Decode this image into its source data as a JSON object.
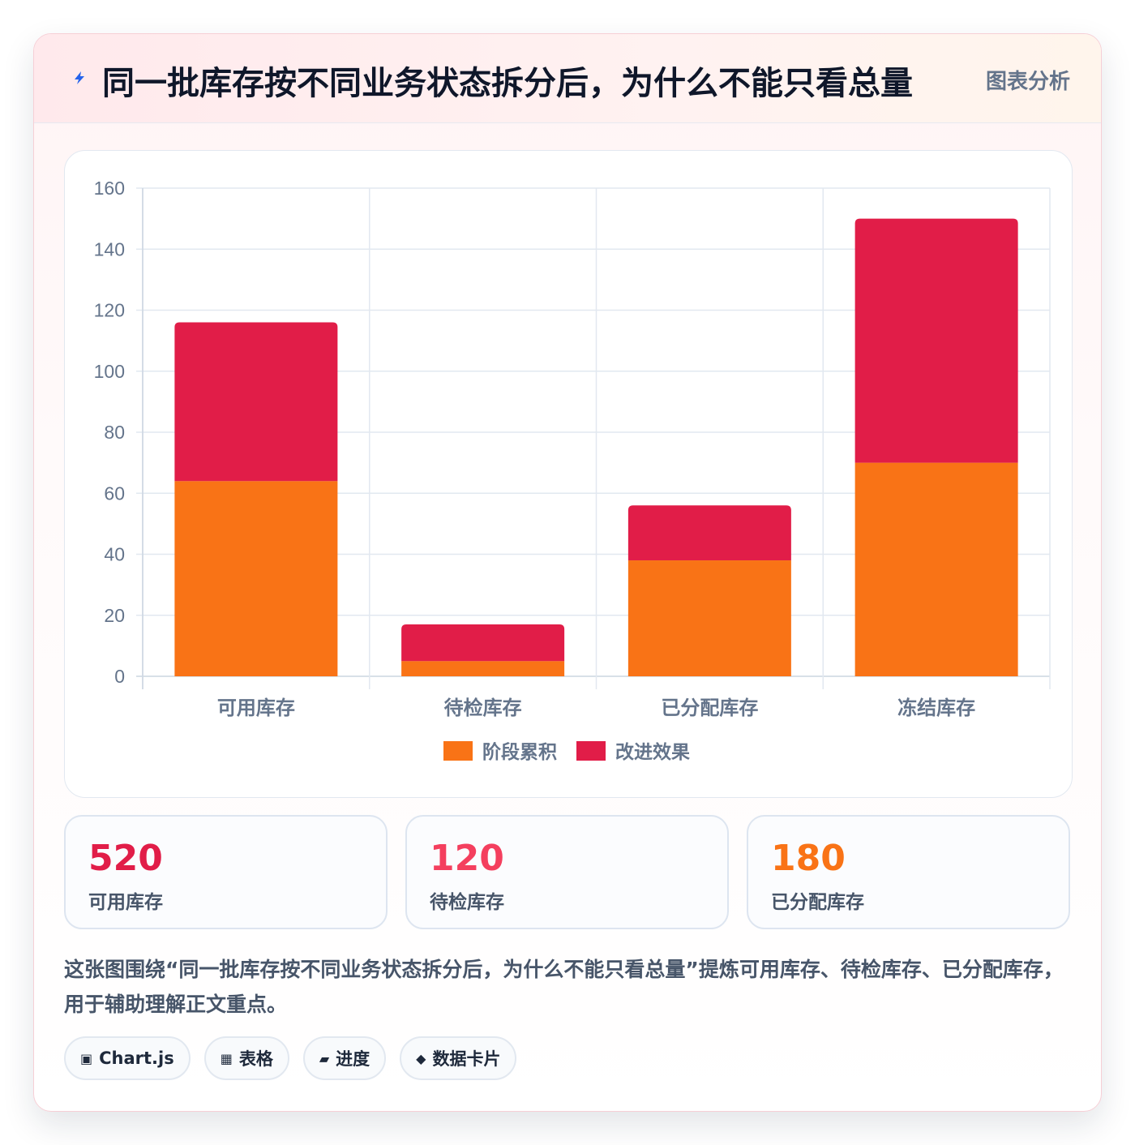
{
  "header": {
    "title": "同一批库存按不同业务状态拆分后，为什么不能只看总量",
    "tag": "图表分析",
    "icon": "lightning-icon"
  },
  "chart_data": {
    "type": "bar",
    "stacked": true,
    "categories": [
      "可用库存",
      "待检库存",
      "已分配库存",
      "冻结库存"
    ],
    "series": [
      {
        "name": "阶段累积",
        "values": [
          64,
          5,
          38,
          70
        ],
        "color": "#f97316"
      },
      {
        "name": "改进效果",
        "values": [
          52,
          12,
          18,
          80
        ],
        "color": "#e11d48"
      }
    ],
    "ylim": [
      0,
      160
    ],
    "yticks": [
      0,
      20,
      40,
      60,
      80,
      100,
      120,
      140,
      160
    ],
    "grid": true,
    "legend": "bottom"
  },
  "stats": [
    {
      "value": "520",
      "label": "可用库存",
      "color": "#e11d48"
    },
    {
      "value": "120",
      "label": "待检库存",
      "color": "#f43f5e"
    },
    {
      "value": "180",
      "label": "已分配库存",
      "color": "#f97316"
    }
  ],
  "description": "这张图围绕“同一批库存按不同业务状态拆分后，为什么不能只看总量”提炼可用库存、待检库存、已分配库存，用于辅助理解正文重点。",
  "chips": [
    {
      "icon": "▣",
      "label": "Chart.js",
      "icon_name": "chart-icon"
    },
    {
      "icon": "▦",
      "label": "表格",
      "icon_name": "table-icon"
    },
    {
      "icon": "▰",
      "label": "进度",
      "icon_name": "progress-icon"
    },
    {
      "icon": "◆",
      "label": "数据卡片",
      "icon_name": "diamond-icon"
    }
  ]
}
